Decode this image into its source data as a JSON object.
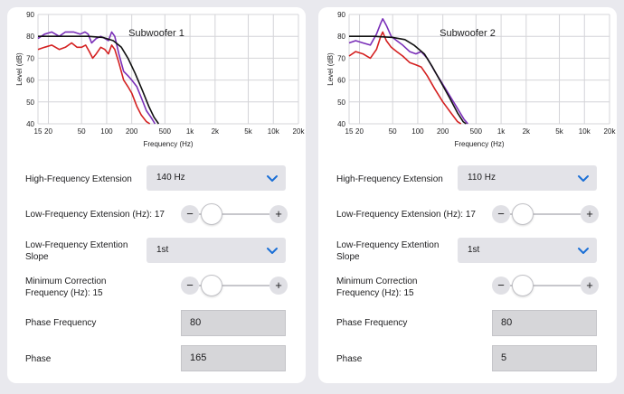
{
  "colors": {
    "accent": "#1a6fd6",
    "purple": "#7a2fb8",
    "red": "#d42020",
    "target": "#111111"
  },
  "panels": [
    {
      "title": "Subwoofer 1",
      "chart": {
        "y_label": "Level (dB)",
        "x_label": "Frequency (Hz)",
        "y_ticks": [
          "40",
          "50",
          "60",
          "70",
          "80",
          "90"
        ],
        "x_ticks": [
          "15",
          "20",
          "50",
          "100",
          "200",
          "500",
          "1k",
          "2k",
          "5k",
          "10k",
          "20k"
        ]
      },
      "hf_extension": {
        "label": "High-Frequency Extension",
        "value": "140 Hz"
      },
      "lf_extension": {
        "label": "Low-Frequency Extension (Hz): 17",
        "minus": "−",
        "plus": "+"
      },
      "lf_slope": {
        "label_line1": "Low-Frequency Extention",
        "label_line2": "Slope",
        "value": "1st"
      },
      "min_correction": {
        "label_line1": "Minimum Correction",
        "label_line2": "Frequency (Hz): 15",
        "minus": "−",
        "plus": "+"
      },
      "phase_frequency": {
        "label": "Phase Frequency",
        "value": "80"
      },
      "phase": {
        "label": "Phase",
        "value": "165"
      }
    },
    {
      "title": "Subwoofer 2",
      "chart": {
        "y_label": "Level (dB)",
        "x_label": "Frequency (Hz)",
        "y_ticks": [
          "40",
          "50",
          "60",
          "70",
          "80",
          "90"
        ],
        "x_ticks": [
          "15",
          "20",
          "50",
          "100",
          "200",
          "500",
          "1k",
          "2k",
          "5k",
          "10k",
          "20k"
        ]
      },
      "hf_extension": {
        "label": "High-Frequency Extension",
        "value": "110 Hz"
      },
      "lf_extension": {
        "label": "Low-Frequency Extension (Hz): 17",
        "minus": "−",
        "plus": "+"
      },
      "lf_slope": {
        "label_line1": "Low-Frequency Extention",
        "label_line2": "Slope",
        "value": "1st"
      },
      "min_correction": {
        "label_line1": "Minimum Correction",
        "label_line2": "Frequency (Hz): 15",
        "minus": "−",
        "plus": "+"
      },
      "phase_frequency": {
        "label": "Phase Frequency",
        "value": "80"
      },
      "phase": {
        "label": "Phase",
        "value": "5"
      }
    }
  ],
  "chart_data": [
    {
      "type": "line",
      "title": "Subwoofer 1",
      "xlabel": "Frequency (Hz)",
      "ylabel": "Level (dB)",
      "x_scale": "log",
      "xlim": [
        15,
        20000
      ],
      "ylim": [
        40,
        90
      ],
      "grid": true,
      "series": [
        {
          "color": "#7a2fb8",
          "points": [
            [
              15,
              79
            ],
            [
              18,
              81
            ],
            [
              22,
              82
            ],
            [
              27,
              80
            ],
            [
              32,
              82
            ],
            [
              40,
              82
            ],
            [
              48,
              81
            ],
            [
              55,
              82
            ],
            [
              60,
              81
            ],
            [
              66,
              77
            ],
            [
              75,
              79
            ],
            [
              85,
              80
            ],
            [
              95,
              79
            ],
            [
              105,
              78
            ],
            [
              115,
              82
            ],
            [
              125,
              80
            ],
            [
              140,
              72
            ],
            [
              160,
              64
            ],
            [
              180,
              62
            ],
            [
              200,
              60
            ],
            [
              230,
              57
            ],
            [
              260,
              52
            ],
            [
              300,
              46
            ],
            [
              340,
              43
            ],
            [
              380,
              40
            ]
          ]
        },
        {
          "color": "#d42020",
          "points": [
            [
              15,
              74
            ],
            [
              18,
              75
            ],
            [
              22,
              76
            ],
            [
              27,
              74
            ],
            [
              32,
              75
            ],
            [
              38,
              77
            ],
            [
              44,
              75
            ],
            [
              50,
              75
            ],
            [
              56,
              76
            ],
            [
              62,
              73
            ],
            [
              68,
              70
            ],
            [
              75,
              72
            ],
            [
              85,
              75
            ],
            [
              95,
              74
            ],
            [
              105,
              72
            ],
            [
              115,
              76
            ],
            [
              125,
              74
            ],
            [
              140,
              68
            ],
            [
              160,
              60
            ],
            [
              180,
              57
            ],
            [
              200,
              54
            ],
            [
              230,
              48
            ],
            [
              260,
              44
            ],
            [
              300,
              41
            ],
            [
              330,
              40
            ]
          ]
        },
        {
          "color": "#111111",
          "points": [
            [
              15,
              80
            ],
            [
              30,
              80
            ],
            [
              60,
              80
            ],
            [
              90,
              79.5
            ],
            [
              120,
              78
            ],
            [
              150,
              75
            ],
            [
              180,
              70
            ],
            [
              220,
              63
            ],
            [
              270,
              55
            ],
            [
              320,
              48
            ],
            [
              370,
              43
            ],
            [
              420,
              40
            ]
          ]
        }
      ]
    },
    {
      "type": "line",
      "title": "Subwoofer 2",
      "xlabel": "Frequency (Hz)",
      "ylabel": "Level (dB)",
      "x_scale": "log",
      "xlim": [
        15,
        20000
      ],
      "ylim": [
        40,
        90
      ],
      "grid": true,
      "series": [
        {
          "color": "#7a2fb8",
          "points": [
            [
              15,
              77
            ],
            [
              18,
              78
            ],
            [
              22,
              77
            ],
            [
              27,
              76
            ],
            [
              32,
              81
            ],
            [
              36,
              86
            ],
            [
              38,
              88
            ],
            [
              42,
              85
            ],
            [
              48,
              80
            ],
            [
              56,
              78
            ],
            [
              66,
              76
            ],
            [
              80,
              73
            ],
            [
              95,
              72
            ],
            [
              110,
              73
            ],
            [
              130,
              70
            ],
            [
              160,
              64
            ],
            [
              200,
              58
            ],
            [
              250,
              52
            ],
            [
              300,
              47
            ],
            [
              360,
              42
            ],
            [
              400,
              40
            ]
          ]
        },
        {
          "color": "#d42020",
          "points": [
            [
              15,
              71
            ],
            [
              18,
              73
            ],
            [
              22,
              72
            ],
            [
              27,
              70
            ],
            [
              32,
              74
            ],
            [
              36,
              80
            ],
            [
              38,
              82
            ],
            [
              42,
              78
            ],
            [
              48,
              75
            ],
            [
              56,
              73
            ],
            [
              66,
              71
            ],
            [
              80,
              68
            ],
            [
              95,
              67
            ],
            [
              110,
              66
            ],
            [
              130,
              62
            ],
            [
              160,
              56
            ],
            [
              200,
              50
            ],
            [
              250,
              45
            ],
            [
              300,
              41
            ],
            [
              330,
              40
            ]
          ]
        },
        {
          "color": "#111111",
          "points": [
            [
              15,
              80
            ],
            [
              30,
              80
            ],
            [
              50,
              79.5
            ],
            [
              70,
              78.5
            ],
            [
              90,
              76
            ],
            [
              120,
              72
            ],
            [
              150,
              66
            ],
            [
              190,
              59
            ],
            [
              240,
              52
            ],
            [
              300,
              45
            ],
            [
              350,
              41
            ],
            [
              380,
              40
            ]
          ]
        }
      ]
    }
  ]
}
